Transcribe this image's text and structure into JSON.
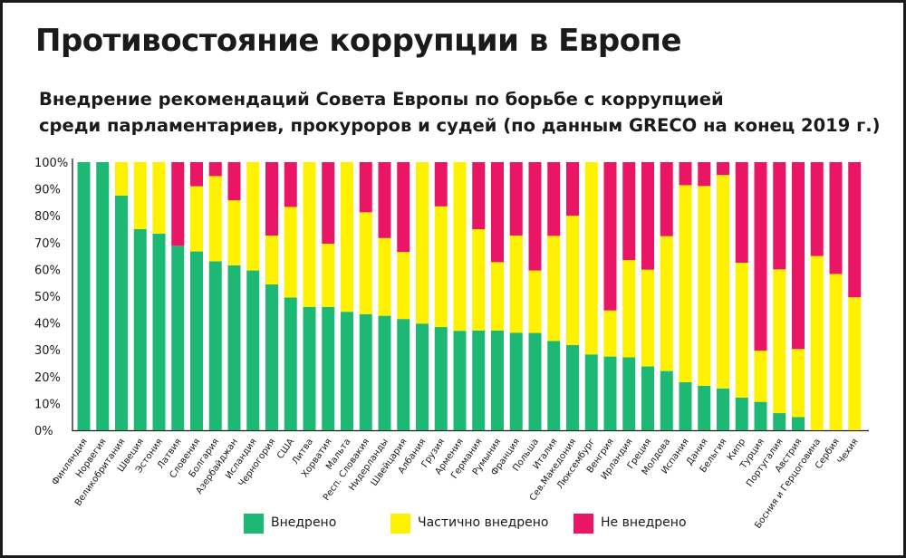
{
  "chart_data": {
    "type": "bar",
    "stacked": true,
    "title": "Противостояние коррупции в Европе",
    "subtitle": [
      "Внедрение рекомендаций Совета Европы по борьбе с коррупцией",
      "среди парламентариев, прокуроров и судей (по данным GRECO на конец 2019 г.)"
    ],
    "xlabel": "",
    "ylabel": "",
    "ylim": [
      0,
      100
    ],
    "y_ticks": [
      "0%",
      "10%",
      "20%",
      "30%",
      "40%",
      "50%",
      "60%",
      "70%",
      "80%",
      "90%",
      "100%"
    ],
    "grid": false,
    "legend_position": "bottom",
    "categories": [
      "Финляндия",
      "Норвегия",
      "Великобритания",
      "Швеция",
      "Эстония",
      "Латвия",
      "Словения",
      "Болгария",
      "Азербайджан",
      "Исландия",
      "Черногория",
      "США",
      "Литва",
      "Хорватия",
      "Мальта",
      "Респ. Словакия",
      "Нидерланды",
      "Швейцария",
      "Албания",
      "Грузия",
      "Армения",
      "Германия",
      "Румыния",
      "Франция",
      "Польша",
      "Италия",
      "Сев.Македония",
      "Люксембург",
      "Венгрия",
      "Ирландия",
      "Греция",
      "Молдова",
      "Испания",
      "Дания",
      "Бельгия",
      "Кипр",
      "Турция",
      "Португалия",
      "Австрия",
      "Босния и Герцоговина",
      "Сербия",
      "Чехия"
    ],
    "series": [
      {
        "name": "Внедрено",
        "color": "#1db974",
        "values": [
          100,
          100,
          87.5,
          75,
          73.3,
          68.8,
          66.7,
          63,
          61.5,
          59.6,
          54.4,
          49.5,
          46,
          46,
          44.2,
          43.3,
          42.7,
          41.5,
          39.8,
          38.5,
          37.1,
          37.2,
          37.2,
          36.4,
          36.3,
          33.3,
          31.8,
          28.3,
          27.5,
          27.2,
          23.8,
          22.1,
          17.9,
          16.6,
          15.6,
          12.2,
          10.6,
          6.4,
          4.9,
          0,
          0,
          0
        ]
      },
      {
        "name": "Частично внедрено",
        "color": "#fff200",
        "values": [
          0,
          0,
          12.5,
          25,
          26.7,
          0,
          24.3,
          31.8,
          24.3,
          40.4,
          18.2,
          33.8,
          54,
          23.6,
          55.8,
          38,
          29,
          25,
          60.2,
          45,
          62.9,
          37.8,
          25.5,
          36.2,
          23.3,
          39.2,
          48.2,
          71.7,
          17.2,
          36.3,
          36.1,
          50.3,
          73.5,
          74.5,
          79.6,
          50.3,
          19.1,
          53.6,
          25.4,
          65,
          58.3,
          49.6
        ]
      },
      {
        "name": "Не внедрено",
        "color": "#ea1565",
        "values": [
          0,
          0,
          0,
          0,
          0,
          31.2,
          9,
          5.2,
          14.2,
          0,
          27.4,
          16.7,
          0,
          30.4,
          0,
          18.7,
          28.3,
          33.5,
          0,
          16.5,
          0,
          25,
          37.3,
          27.4,
          40.4,
          27.5,
          20,
          0,
          55.3,
          36.5,
          40.1,
          27.6,
          8.6,
          8.9,
          4.8,
          37.5,
          70.3,
          40,
          69.7,
          35,
          41.7,
          50.4
        ]
      }
    ]
  }
}
